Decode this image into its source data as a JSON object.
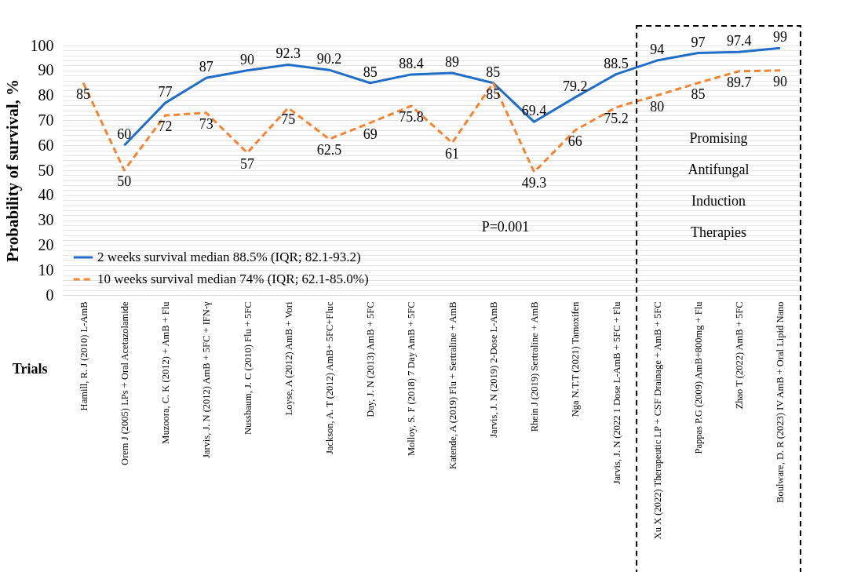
{
  "chart_data": {
    "type": "line",
    "xlabel": "Trials",
    "ylabel": "Probability of survival, %",
    "categories": [
      "Hamill, R. J (2010) L-AmB",
      "Orem J (2005) LPs + Oral Acetazolamide",
      "Muzoora, C. K (2012) + AmB + Flu",
      "Jarvis, J. N (2012) AmB + 5FC + IFN-γ",
      "Nussbaum, J. C (2010) Flu + 5FC",
      "Loyse, A (2012) AmB + Vori",
      "Jackson, A. T (2012) AmB+ 5FC+Fluc",
      "Day, J. N (2013) AmB + 5FC",
      "Molloy, S. F (2018) 7 Day AmB + 5FC",
      "Katende, A (2019) Flu + Sertraline + AmB",
      "Jarvis, J. N (2019) 2-Dose L-AmB",
      "Rhein J (2019) Sertraline + AmB",
      "Nga N.T.T (2021) Tamoxifen",
      "Jarvis, J. N (2022 1 Dose L-AmB + 5FC + Flu",
      "Xu X (2022) Therapeutic LP + CSF Drainage + AmB + 5FC",
      "Pappas P.G (2009) AmB+800mg + Flu",
      "Zhao T (2022) AmB + 5FC",
      "Boulware, D. R (2023) IV AmB + Oral Lipid Nano"
    ],
    "series": [
      {
        "name": "2 weeks      survival median 88.5% (IQR; 82.1-93.2)",
        "color": "#1f6fc9",
        "line_style": "solid",
        "values": [
          null,
          60,
          77,
          87,
          90,
          92.3,
          90.2,
          85,
          88.4,
          89,
          85,
          69.4,
          79.2,
          88.5,
          94,
          97,
          97.4,
          99
        ]
      },
      {
        "name": "10 weeks      survival median 74% (IQR; 62.1-85.0%)",
        "color": "#f7822f",
        "line_style": "dashed",
        "values": [
          85,
          50,
          72,
          73,
          57,
          75,
          62.5,
          69,
          75.8,
          61,
          85,
          49.3,
          66,
          75.2,
          80,
          85,
          89.7,
          90
        ]
      }
    ],
    "ylim": [
      0,
      100
    ],
    "yticks": [
      0,
      {
        "value": 2,
        "label": null
      },
      {
        "value": 4,
        "label": null
      },
      {
        "value": 6,
        "label": null
      },
      {
        "value": 8,
        "label": null
      },
      10,
      {
        "value": 12,
        "label": null
      },
      {
        "value": 14,
        "label": null
      },
      {
        "value": 16,
        "label": null
      },
      {
        "value": 18,
        "label": null
      },
      20,
      {
        "value": 22,
        "label": null
      },
      {
        "value": 24,
        "label": null
      },
      {
        "value": 26,
        "label": null
      },
      {
        "value": 28,
        "label": null
      },
      30,
      {
        "value": 32,
        "label": null
      },
      {
        "value": 34,
        "label": null
      },
      {
        "value": 36,
        "label": null
      },
      {
        "value": 38,
        "label": null
      },
      40,
      {
        "value": 42,
        "label": null
      },
      {
        "value": 44,
        "label": null
      },
      {
        "value": 46,
        "label": null
      },
      {
        "value": 48,
        "label": null
      },
      50,
      {
        "value": 52,
        "label": null
      },
      {
        "value": 54,
        "label": null
      },
      {
        "value": 56,
        "label": null
      },
      {
        "value": 58,
        "label": null
      },
      60,
      {
        "value": 62,
        "label": null
      },
      {
        "value": 64,
        "label": null
      },
      {
        "value": 66,
        "label": null
      },
      {
        "value": 68,
        "label": null
      },
      70,
      {
        "value": 72,
        "label": null
      },
      {
        "value": 74,
        "label": null
      },
      {
        "value": 76,
        "label": null
      },
      {
        "value": 78,
        "label": null
      },
      80,
      {
        "value": 82,
        "label": null
      },
      {
        "value": 84,
        "label": null
      },
      {
        "value": 86,
        "label": null
      },
      {
        "value": 88,
        "label": null
      },
      90,
      {
        "value": 92,
        "label": null
      },
      {
        "value": 94,
        "label": null
      },
      {
        "value": 96,
        "label": null
      },
      {
        "value": 98,
        "label": null
      },
      100
    ],
    "grid": "y",
    "legend": "bottom left",
    "data_labels": true,
    "marker": "none",
    "annotations": [
      "P=0.001",
      "Promising Antifungal Induction Therapies"
    ]
  }
}
